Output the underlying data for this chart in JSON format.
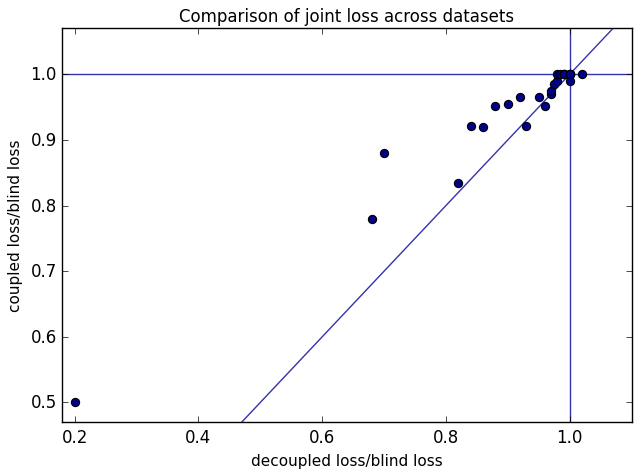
{
  "title": "Comparison of joint loss across datasets",
  "xlabel": "decoupled loss/blind loss",
  "ylabel": "coupled loss/blind loss",
  "xlim": [
    0.18,
    1.1
  ],
  "ylim": [
    0.47,
    1.07
  ],
  "x_points": [
    0.2,
    0.68,
    0.7,
    0.82,
    0.84,
    0.86,
    0.88,
    0.9,
    0.92,
    0.93,
    0.95,
    0.96,
    0.97,
    0.97,
    0.975,
    0.98,
    0.98,
    0.985,
    0.99,
    0.99,
    0.99,
    1.0,
    1.0,
    1.0,
    1.0,
    1.0,
    1.02
  ],
  "y_points": [
    0.5,
    0.78,
    0.88,
    0.835,
    0.921,
    0.92,
    0.951,
    0.955,
    0.965,
    0.921,
    0.965,
    0.951,
    0.97,
    0.975,
    0.985,
    0.99,
    1.0,
    1.0,
    1.0,
    1.0,
    1.0,
    1.0,
    1.0,
    1.0,
    1.0,
    0.99,
    1.0
  ],
  "hline_y": 1.0,
  "vline_x": 1.0,
  "line_color": "#3333aa",
  "point_facecolor": "#00008b",
  "point_edgecolor": "black",
  "point_size": 35,
  "point_linewidth": 0.8,
  "xticks": [
    0.2,
    0.4,
    0.6,
    0.8,
    1.0
  ],
  "yticks": [
    0.5,
    0.6,
    0.7,
    0.8,
    0.9,
    1.0
  ],
  "title_fontsize": 12,
  "label_fontsize": 11
}
